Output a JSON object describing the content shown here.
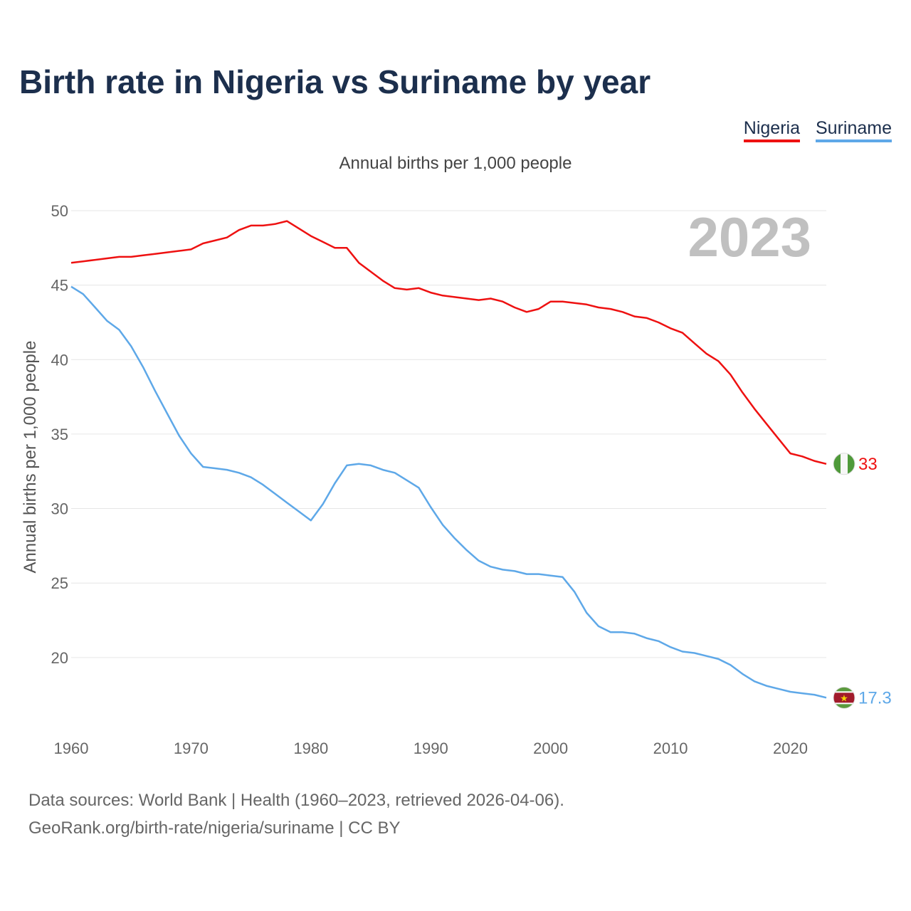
{
  "title": "Birth rate in Nigeria vs Suriname by year",
  "footer": {
    "line1": "Data sources: World Bank | Health (1960–2023, retrieved 2026-04-06).",
    "line2": "GeoRank.org/birth-rate/nigeria/suriname | CC BY"
  },
  "chart_data": {
    "type": "line",
    "title": "Birth rate in Nigeria vs Suriname by year",
    "subtitle": "Annual births per 1,000 people",
    "xlabel": "",
    "ylabel": "Annual births per 1,000 people",
    "current_year": "2023",
    "xlim": [
      1960,
      2023
    ],
    "ylim": [
      15.5,
      50
    ],
    "yticks": [
      20,
      25,
      30,
      35,
      40,
      45,
      50
    ],
    "xticks": [
      1960,
      1970,
      1980,
      1990,
      2000,
      2010,
      2020
    ],
    "grid": true,
    "legend": "top-right",
    "x": [
      1960,
      1961,
      1962,
      1963,
      1964,
      1965,
      1966,
      1967,
      1968,
      1969,
      1970,
      1971,
      1972,
      1973,
      1974,
      1975,
      1976,
      1977,
      1978,
      1979,
      1980,
      1981,
      1982,
      1983,
      1984,
      1985,
      1986,
      1987,
      1988,
      1989,
      1990,
      1991,
      1992,
      1993,
      1994,
      1995,
      1996,
      1997,
      1998,
      1999,
      2000,
      2001,
      2002,
      2003,
      2004,
      2005,
      2006,
      2007,
      2008,
      2009,
      2010,
      2011,
      2012,
      2013,
      2014,
      2015,
      2016,
      2017,
      2018,
      2019,
      2020,
      2021,
      2022,
      2023
    ],
    "series": [
      {
        "name": "Nigeria",
        "color": "#ee1111",
        "end_label": "33",
        "flag": "nigeria-flag-icon",
        "values": [
          46.5,
          46.6,
          46.7,
          46.8,
          46.9,
          46.9,
          47.0,
          47.1,
          47.2,
          47.3,
          47.4,
          47.8,
          48.0,
          48.2,
          48.7,
          49.0,
          49.0,
          49.1,
          49.3,
          48.8,
          48.3,
          47.9,
          47.5,
          47.5,
          46.5,
          45.9,
          45.3,
          44.8,
          44.7,
          44.8,
          44.5,
          44.3,
          44.2,
          44.1,
          44.0,
          44.1,
          43.9,
          43.5,
          43.2,
          43.4,
          43.9,
          43.9,
          43.8,
          43.7,
          43.5,
          43.4,
          43.2,
          42.9,
          42.8,
          42.5,
          42.1,
          41.8,
          41.1,
          40.4,
          39.9,
          39.0,
          37.8,
          36.7,
          35.7,
          34.7,
          33.7,
          33.5,
          33.2,
          33.0
        ]
      },
      {
        "name": "Suriname",
        "color": "#5ea8e8",
        "end_label": "17.3",
        "flag": "suriname-flag-icon",
        "values": [
          44.9,
          44.4,
          43.5,
          42.6,
          42.0,
          40.9,
          39.5,
          37.9,
          36.4,
          34.9,
          33.7,
          32.8,
          32.7,
          32.6,
          32.4,
          32.1,
          31.6,
          31.0,
          30.4,
          29.8,
          29.2,
          30.3,
          31.7,
          32.9,
          33.0,
          32.9,
          32.6,
          32.4,
          31.9,
          31.4,
          30.1,
          28.9,
          28.0,
          27.2,
          26.5,
          26.1,
          25.9,
          25.8,
          25.6,
          25.6,
          25.5,
          25.4,
          24.4,
          23.0,
          22.1,
          21.7,
          21.7,
          21.6,
          21.3,
          21.1,
          20.7,
          20.4,
          20.3,
          20.1,
          19.9,
          19.5,
          18.9,
          18.4,
          18.1,
          17.9,
          17.7,
          17.6,
          17.5,
          17.3
        ]
      }
    ]
  }
}
